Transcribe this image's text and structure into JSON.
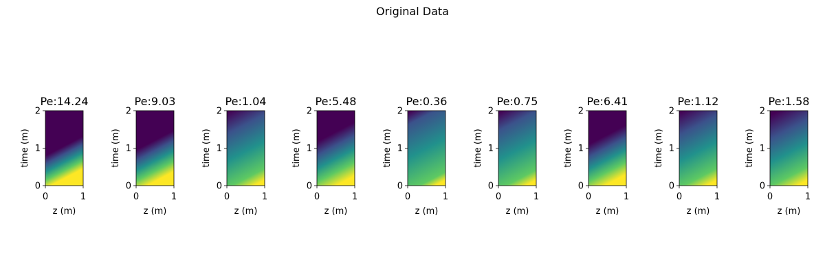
{
  "figure": {
    "title": "Original Data"
  },
  "chart_data": {
    "type": "heatmap",
    "title": "Original Data",
    "xlabel": "z (m)",
    "ylabel": "time (m)",
    "xlim": [
      0,
      1
    ],
    "ylim": [
      0,
      2
    ],
    "xticks": [
      "0",
      "1"
    ],
    "yticks": [
      "0",
      "1",
      "2"
    ],
    "colormap": "viridis",
    "grid": false,
    "panels": [
      {
        "title": "Pe:14.24",
        "pe": 14.24
      },
      {
        "title": "Pe:9.03",
        "pe": 9.03
      },
      {
        "title": "Pe:1.04",
        "pe": 1.04
      },
      {
        "title": "Pe:5.48",
        "pe": 5.48
      },
      {
        "title": "Pe:0.36",
        "pe": 0.36
      },
      {
        "title": "Pe:0.75",
        "pe": 0.75
      },
      {
        "title": "Pe:6.41",
        "pe": 6.41
      },
      {
        "title": "Pe:1.12",
        "pe": 1.12
      },
      {
        "title": "Pe:1.58",
        "pe": 1.58
      }
    ]
  }
}
